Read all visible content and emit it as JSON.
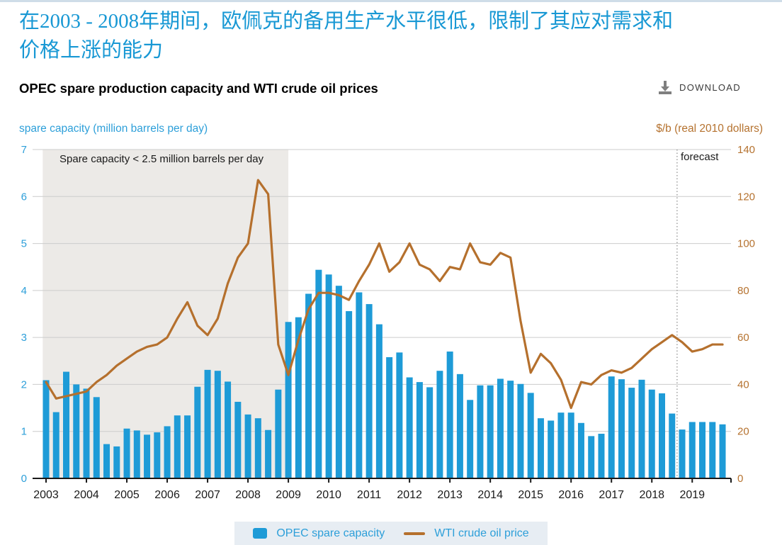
{
  "page": {
    "title_zh_line1": "在2003 - 2008年期间，欧佩克的备用生产水平很低，限制了其应对需求和",
    "title_zh_line2": "价格上涨的能力",
    "subtitle": "OPEC spare production capacity and WTI crude oil prices",
    "download_label": "DOWNLOAD"
  },
  "chart_data": {
    "type": "combo-bar-line",
    "title": "OPEC spare production capacity and WTI crude oil prices",
    "left_axis": {
      "label": "spare capacity (million barrels per day)",
      "min": 0,
      "max": 7,
      "tick_step": 1,
      "color": "#2d9fd9"
    },
    "right_axis": {
      "label": "$/b (real 2010 dollars)",
      "min": 0,
      "max": 140,
      "tick_step": 20,
      "color": "#b5722f"
    },
    "years": [
      2003,
      2004,
      2005,
      2006,
      2007,
      2008,
      2009,
      2010,
      2011,
      2012,
      2013,
      2014,
      2015,
      2016,
      2017,
      2018,
      2019
    ],
    "quarters_per_year": 4,
    "grid": true,
    "legend_position": "bottom",
    "series": [
      {
        "name": "OPEC spare capacity",
        "type": "bar",
        "axis": "left",
        "color": "#1e9bd7",
        "values": [
          2.09,
          1.41,
          2.27,
          2.0,
          1.91,
          1.73,
          0.73,
          0.68,
          1.06,
          1.02,
          0.93,
          0.98,
          1.11,
          1.34,
          1.34,
          1.95,
          2.31,
          2.29,
          2.06,
          1.63,
          1.36,
          1.28,
          1.03,
          1.89,
          3.33,
          3.43,
          3.93,
          4.44,
          4.34,
          4.1,
          3.56,
          3.96,
          3.71,
          3.28,
          2.58,
          2.68,
          2.15,
          2.05,
          1.94,
          2.29,
          2.7,
          2.22,
          1.67,
          1.98,
          1.98,
          2.12,
          2.08,
          2.01,
          1.82,
          1.28,
          1.23,
          1.4,
          1.4,
          1.18,
          0.9,
          0.95,
          2.17,
          2.11,
          1.93,
          2.1,
          1.89,
          1.81,
          1.38,
          1.04,
          1.2,
          1.2,
          1.2,
          1.15
        ]
      },
      {
        "name": "WTI crude oil price",
        "type": "line",
        "axis": "right",
        "color": "#b5702d",
        "values": [
          41,
          34,
          35,
          36,
          37,
          41,
          44,
          48,
          51,
          54,
          56,
          57,
          60,
          68,
          75,
          65,
          61,
          68,
          83,
          94,
          100,
          127,
          121,
          57,
          44,
          59,
          72,
          79,
          79,
          78,
          76,
          84,
          91,
          100,
          88,
          92,
          100,
          91,
          89,
          84,
          90,
          89,
          100,
          92,
          91,
          96,
          94,
          67,
          45,
          53,
          49,
          42,
          30,
          41,
          40,
          44,
          46,
          45,
          47,
          51,
          55,
          58,
          61,
          58,
          54,
          55,
          57,
          57
        ]
      }
    ],
    "annotation": "Spare capacity < 2.5 million barrels per day",
    "shaded_region": {
      "start_index": 0,
      "end_index": 24,
      "color": "#eceae7"
    },
    "forecast": {
      "label": "forecast",
      "boundary_index": 62.5
    }
  },
  "legend": {
    "bar_label": "OPEC spare capacity",
    "line_label": "WTI crude oil price"
  },
  "colors": {
    "bar": "#1e9bd7",
    "line": "#b5702d",
    "gridline": "#cccccc",
    "axis_line": "#1a1a1a",
    "shade": "#eceae7",
    "title_blue": "#1898d4",
    "download_gray": "#7f7f7f"
  }
}
